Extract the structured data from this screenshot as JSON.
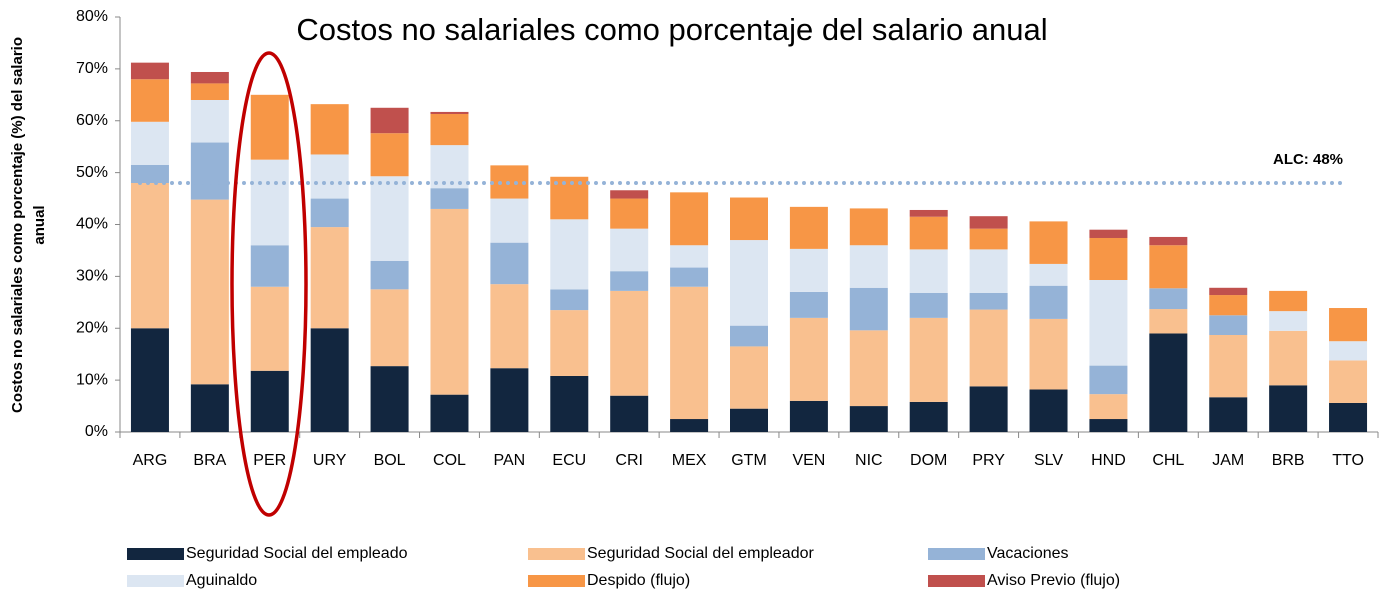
{
  "chart_data": {
    "type": "stacked_bar",
    "title": "Costos no salariales como porcentaje del salario anual",
    "ylabel": [
      "Costos no salariales como porcentaje (%) del salario",
      "anual"
    ],
    "categories": [
      "ARG",
      "BRA",
      "PER",
      "URY",
      "BOL",
      "COL",
      "PAN",
      "ECU",
      "CRI",
      "MEX",
      "GTM",
      "VEN",
      "NIC",
      "DOM",
      "PRY",
      "SLV",
      "HND",
      "CHL",
      "JAM",
      "BRB",
      "TTO"
    ],
    "series": [
      {
        "name": "Seguridad Social del empleado",
        "color": "#12263f",
        "values": [
          20,
          9.2,
          11.8,
          20,
          12.7,
          7.2,
          12.3,
          10.8,
          7,
          2.5,
          4.5,
          6,
          5,
          5.8,
          8.8,
          8.2,
          2.5,
          19,
          6.7,
          9,
          5.6
        ]
      },
      {
        "name": "Seguridad Social del empleador",
        "color": "#f9c08f",
        "values": [
          28,
          35.6,
          16.2,
          19.5,
          14.8,
          35.8,
          16.2,
          12.7,
          20.2,
          25.5,
          12,
          16,
          14.6,
          16.2,
          14.8,
          13.6,
          4.8,
          4.7,
          12,
          10.5,
          8.2
        ]
      },
      {
        "name": "Vacaciones",
        "color": "#95b3d7",
        "values": [
          3.5,
          11,
          8,
          5.5,
          5.5,
          4,
          8,
          4,
          3.8,
          3.7,
          4,
          5,
          8.2,
          4.8,
          3.2,
          6.4,
          5.5,
          4,
          3.8,
          0,
          0
        ]
      },
      {
        "name": "Aguinaldo",
        "color": "#dce6f2",
        "values": [
          8.3,
          8.2,
          16.5,
          8.5,
          16.3,
          8.3,
          8.5,
          13.5,
          8.2,
          4.3,
          16.5,
          8.3,
          8.2,
          8.4,
          8.4,
          4.2,
          16.5,
          0,
          0,
          3.8,
          3.7
        ]
      },
      {
        "name": "Despido (flujo)",
        "color": "#f79646",
        "values": [
          8.2,
          3.2,
          12.5,
          9.7,
          8.3,
          6,
          6.4,
          8.2,
          5.8,
          10.2,
          8.2,
          8.1,
          7.1,
          6.3,
          4,
          8.2,
          8.1,
          8.3,
          3.9,
          3.9,
          6.4
        ]
      },
      {
        "name": "Aviso Previo (flujo)",
        "color": "#c0504d",
        "values": [
          3.2,
          2.2,
          0,
          0,
          4.9,
          0.4,
          0,
          0,
          1.6,
          0,
          0,
          0,
          0,
          1.3,
          2.4,
          0,
          1.6,
          1.6,
          1.4,
          0,
          0
        ]
      }
    ],
    "ylim": [
      0,
      80
    ],
    "yticks": [
      {
        "value": 0,
        "label": "0%"
      },
      {
        "value": 10,
        "label": "10%"
      },
      {
        "value": 20,
        "label": "20%"
      },
      {
        "value": 30,
        "label": "30%"
      },
      {
        "value": 40,
        "label": "40%"
      },
      {
        "value": 50,
        "label": "50%"
      },
      {
        "value": 60,
        "label": "60%"
      },
      {
        "value": 70,
        "label": "70%"
      },
      {
        "value": 80,
        "label": "80%"
      }
    ],
    "reference_line": {
      "value": 48,
      "label": "ALC: 48%",
      "color": "#95b3d7"
    },
    "legend": "bottom"
  }
}
